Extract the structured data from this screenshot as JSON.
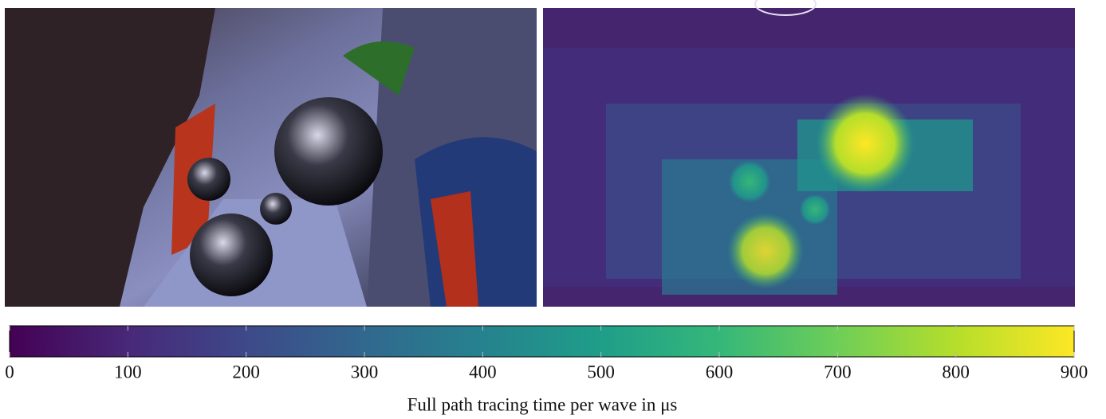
{
  "chart_data": {
    "type": "colorbar",
    "xlabel": "Full path tracing time per wave in μs",
    "xlim": [
      0,
      900
    ],
    "xticks": [
      0,
      100,
      200,
      300,
      400,
      500,
      600,
      700,
      800,
      900
    ],
    "colormap": "viridis"
  }
}
